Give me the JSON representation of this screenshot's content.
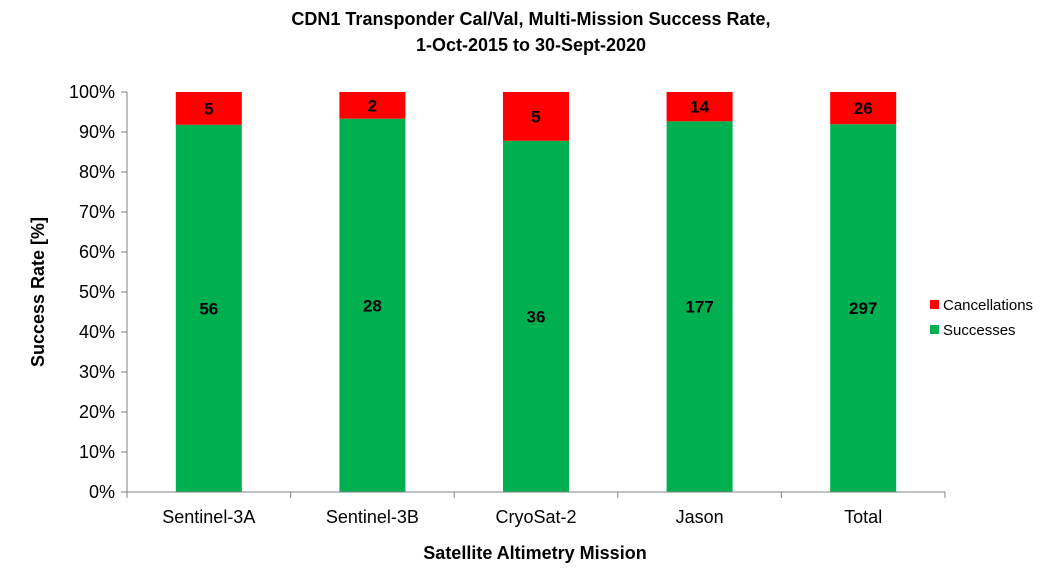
{
  "chart_data": {
    "type": "bar",
    "stacked": true,
    "normalized": true,
    "title_lines": [
      "CDN1 Transponder Cal/Val, Multi-Mission Success Rate,",
      "1-Oct-2015 to 30-Sept-2020"
    ],
    "xlabel": "Satellite Altimetry Mission",
    "ylabel": "Success Rate [%]",
    "ylim": [
      0,
      100
    ],
    "yticks": [
      "0%",
      "10%",
      "20%",
      "30%",
      "40%",
      "50%",
      "60%",
      "70%",
      "80%",
      "90%",
      "100%"
    ],
    "categories": [
      "Sentinel-3A",
      "Sentinel-3B",
      "CryoSat-2",
      "Jason",
      "Total"
    ],
    "series": [
      {
        "name": "Successes",
        "color": "#00b050",
        "values": [
          56,
          28,
          36,
          177,
          297
        ]
      },
      {
        "name": "Cancellations",
        "color": "#ff0000",
        "values": [
          5,
          2,
          5,
          14,
          26
        ]
      }
    ],
    "legend": {
      "position": "right",
      "order": [
        "Cancellations",
        "Successes"
      ]
    },
    "grid": false
  }
}
